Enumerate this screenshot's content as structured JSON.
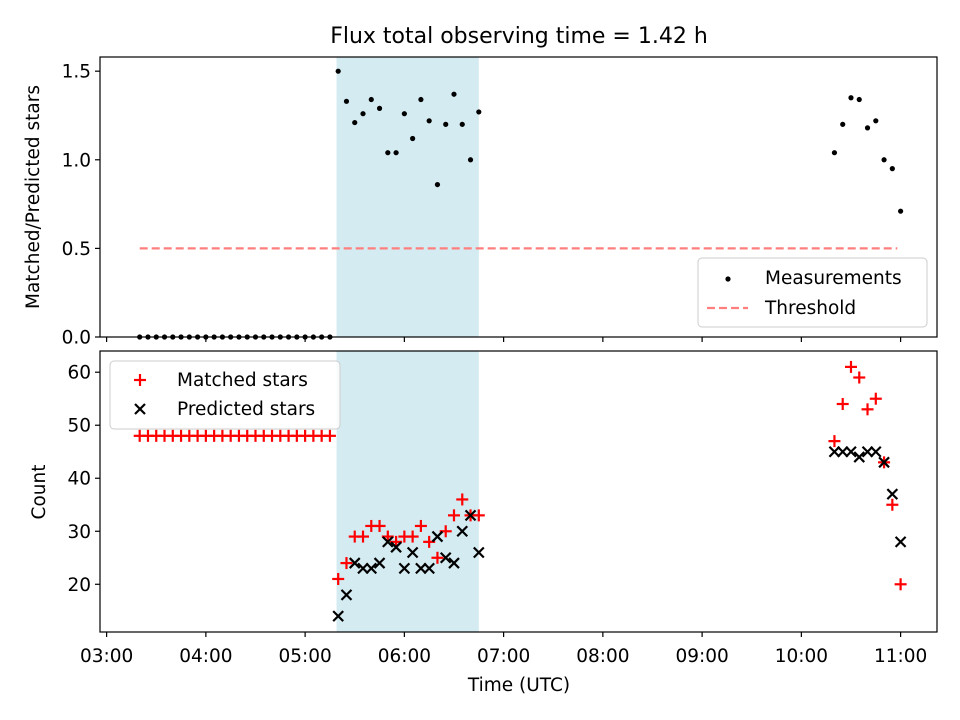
{
  "chart_data": [
    {
      "type": "scatter",
      "title": "Flux total observing time = 1.42 h",
      "xlabel": "",
      "ylabel": "Matched/Predicted stars",
      "ylim": [
        0,
        1.58
      ],
      "yticks": [
        {
          "v": 0.0,
          "label": "0.0"
        },
        {
          "v": 0.5,
          "label": "0.5"
        },
        {
          "v": 1.0,
          "label": "1.0"
        },
        {
          "v": 1.5,
          "label": "1.5"
        }
      ],
      "shaded_interval": {
        "start": "05:19",
        "end": "06:45",
        "color": "#d4ebf1"
      },
      "legend": {
        "position": "lower right",
        "entries": [
          {
            "label": "Measurements",
            "marker": "dot",
            "color": "#000000"
          },
          {
            "label": "Threshold",
            "marker": "dashed-line",
            "color": "#ff7f7f"
          }
        ]
      },
      "series": [
        {
          "name": "Measurements",
          "marker": "dot",
          "color": "#000000",
          "x": [
            "03:20",
            "03:25",
            "03:30",
            "03:35",
            "03:40",
            "03:45",
            "03:50",
            "03:55",
            "04:00",
            "04:05",
            "04:10",
            "04:15",
            "04:20",
            "04:25",
            "04:30",
            "04:35",
            "04:40",
            "04:45",
            "04:50",
            "04:55",
            "05:00",
            "05:05",
            "05:10",
            "05:15",
            "05:20",
            "05:25",
            "05:30",
            "05:35",
            "05:40",
            "05:45",
            "05:50",
            "05:55",
            "06:00",
            "06:05",
            "06:10",
            "06:15",
            "06:20",
            "06:25",
            "06:30",
            "06:35",
            "06:40",
            "06:45",
            "10:20",
            "10:25",
            "10:30",
            "10:35",
            "10:40",
            "10:45",
            "10:50",
            "10:55",
            "11:00"
          ],
          "y": [
            0,
            0,
            0,
            0,
            0,
            0,
            0,
            0,
            0,
            0,
            0,
            0,
            0,
            0,
            0,
            0,
            0,
            0,
            0,
            0,
            0,
            0,
            0,
            0,
            1.5,
            1.33,
            1.21,
            1.26,
            1.34,
            1.29,
            1.04,
            1.04,
            1.26,
            1.12,
            1.34,
            1.22,
            0.86,
            1.2,
            1.37,
            1.2,
            1.0,
            1.27,
            1.04,
            1.2,
            1.35,
            1.34,
            1.18,
            1.22,
            1.0,
            0.95,
            0.71
          ]
        },
        {
          "name": "Threshold",
          "marker": "dashed-line",
          "color": "#ff7f7f",
          "x": [
            "03:20",
            "10:58"
          ],
          "y": [
            0.5,
            0.5
          ]
        }
      ]
    },
    {
      "type": "scatter",
      "title": "",
      "xlabel": "Time (UTC)",
      "ylabel": "Count",
      "ylim": [
        11,
        64
      ],
      "yticks": [
        {
          "v": 20,
          "label": "20"
        },
        {
          "v": 30,
          "label": "30"
        },
        {
          "v": 40,
          "label": "40"
        },
        {
          "v": 50,
          "label": "50"
        },
        {
          "v": 60,
          "label": "60"
        }
      ],
      "xlim": [
        "02:56",
        "11:22"
      ],
      "xticks": [
        {
          "v": "03:00",
          "label": "03:00"
        },
        {
          "v": "04:00",
          "label": "04:00"
        },
        {
          "v": "05:00",
          "label": "05:00"
        },
        {
          "v": "06:00",
          "label": "06:00"
        },
        {
          "v": "07:00",
          "label": "07:00"
        },
        {
          "v": "08:00",
          "label": "08:00"
        },
        {
          "v": "09:00",
          "label": "09:00"
        },
        {
          "v": "10:00",
          "label": "10:00"
        },
        {
          "v": "11:00",
          "label": "11:00"
        }
      ],
      "shaded_interval": {
        "start": "05:19",
        "end": "06:45",
        "color": "#d4ebf1"
      },
      "legend": {
        "position": "upper left",
        "entries": [
          {
            "label": "Matched stars",
            "marker": "plus",
            "color": "#ff0000"
          },
          {
            "label": "Predicted stars",
            "marker": "x",
            "color": "#000000"
          }
        ]
      },
      "series": [
        {
          "name": "Matched stars",
          "marker": "plus",
          "color": "#ff0000",
          "x": [
            "03:20",
            "03:25",
            "03:30",
            "03:35",
            "03:40",
            "03:45",
            "03:50",
            "03:55",
            "04:00",
            "04:05",
            "04:10",
            "04:15",
            "04:20",
            "04:25",
            "04:30",
            "04:35",
            "04:40",
            "04:45",
            "04:50",
            "04:55",
            "05:00",
            "05:05",
            "05:10",
            "05:15",
            "05:20",
            "05:25",
            "05:30",
            "05:35",
            "05:40",
            "05:45",
            "05:50",
            "05:55",
            "06:00",
            "06:05",
            "06:10",
            "06:15",
            "06:20",
            "06:25",
            "06:30",
            "06:35",
            "06:40",
            "06:45",
            "10:20",
            "10:25",
            "10:30",
            "10:35",
            "10:40",
            "10:45",
            "10:50",
            "10:55",
            "11:00"
          ],
          "y": [
            48,
            48,
            48,
            48,
            48,
            48,
            48,
            48,
            48,
            48,
            48,
            48,
            48,
            48,
            48,
            48,
            48,
            48,
            48,
            48,
            48,
            48,
            48,
            48,
            21,
            24,
            29,
            29,
            31,
            31,
            29,
            28,
            29,
            29,
            31,
            28,
            25,
            30,
            33,
            36,
            33,
            33,
            47,
            54,
            61,
            59,
            53,
            55,
            43,
            35,
            20
          ]
        },
        {
          "name": "Predicted stars",
          "marker": "x",
          "color": "#000000",
          "x": [
            "05:20",
            "05:25",
            "05:30",
            "05:35",
            "05:40",
            "05:45",
            "05:50",
            "05:55",
            "06:00",
            "06:05",
            "06:10",
            "06:15",
            "06:20",
            "06:25",
            "06:30",
            "06:35",
            "06:40",
            "06:45",
            "10:20",
            "10:25",
            "10:30",
            "10:35",
            "10:40",
            "10:45",
            "10:50",
            "10:55",
            "11:00"
          ],
          "y": [
            14,
            18,
            24,
            23,
            23,
            24,
            28,
            27,
            23,
            26,
            23,
            23,
            29,
            25,
            24,
            30,
            33,
            26,
            45,
            45,
            45,
            44,
            45,
            45,
            43,
            37,
            28
          ]
        }
      ]
    }
  ]
}
